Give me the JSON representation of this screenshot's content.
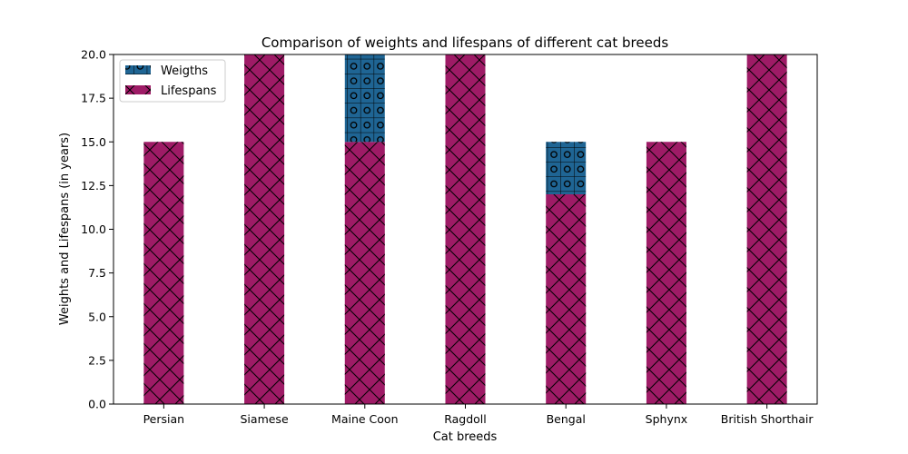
{
  "chart_data": {
    "type": "bar",
    "stacked": true,
    "title": "Comparison of weights and lifespans of different cat breeds",
    "xlabel": "Cat breeds",
    "ylabel": "Weights and Lifespans (in years)",
    "categories": [
      "Persian",
      "Siamese",
      "Maine Coon",
      "Ragdoll",
      "Bengal",
      "Sphynx",
      "British Shorthair"
    ],
    "ylim": [
      0,
      20.0
    ],
    "yticks": [
      "0.0",
      "2.5",
      "5.0",
      "7.5",
      "10.0",
      "12.5",
      "15.0",
      "17.5",
      "20.0"
    ],
    "series": [
      {
        "name": "Weigths",
        "values": [
          0,
          0,
          5,
          0,
          3,
          0,
          0
        ],
        "color": "#1f6594",
        "hatch": "o-grid"
      },
      {
        "name": "Lifespans",
        "values": [
          15,
          20,
          15,
          20,
          12,
          15,
          20
        ],
        "color": "#9e1b66",
        "hatch": "cross"
      }
    ],
    "stack_order": [
      "Lifespans",
      "Weigths"
    ],
    "legend_position": "top-left",
    "grid": false
  }
}
